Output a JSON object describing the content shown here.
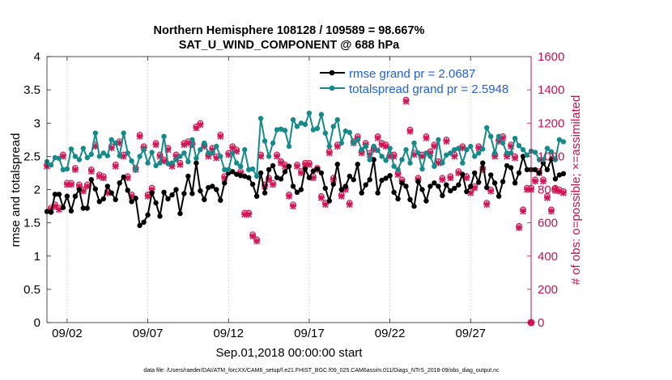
{
  "chart_data": {
    "type": "line",
    "title": "Northern Hemisphere 108128 / 109589 = 98.667%",
    "subtitle": "SAT_U_WIND_COMPONENT @ 688 hPa",
    "xlabel": "Sep.01,2018 00:00:00 start",
    "ylabel_left": "rmse and totalspread",
    "ylabel_right": "# of obs: o=possible; ×=assimilated",
    "footer": "data file: /Users/raeder/DAI/ATM_forcXX/CAM6_setup/f.e21.FHIST_BGC.f09_025.CAM6assim.011/Diags_NTrS_2018-09/obs_diag_output.nc",
    "xlim": [
      0.5,
      30.5
    ],
    "ylim_left": [
      0,
      4
    ],
    "ylim_right": [
      0,
      1600
    ],
    "x_ticks": [
      1.75,
      6.75,
      11.75,
      16.75,
      21.75,
      26.75
    ],
    "x_tick_labels": [
      "09/02",
      "09/07",
      "09/12",
      "09/17",
      "09/22",
      "09/27"
    ],
    "y_ticks_left": [
      "0",
      "0.5",
      "1",
      "1.5",
      "2",
      "2.5",
      "3",
      "3.5",
      "4"
    ],
    "y_ticks_right": [
      "0",
      "200",
      "400",
      "600",
      "800",
      "1000",
      "1200",
      "1400",
      "1600"
    ],
    "colors": {
      "rmse": "#000000",
      "spread": "#148a8a",
      "obs": "#d41454",
      "legend_text": "#1f5fe0",
      "right_axis": "#c8104e"
    },
    "legend": [
      "rmse grand pr = 2.0687",
      "totalspread grand pr = 2.5948"
    ],
    "series": [
      {
        "name": "rmse",
        "x_start": 0.5,
        "x_step": 0.25,
        "values": [
          1.67,
          1.66,
          1.93,
          1.93,
          1.73,
          1.9,
          1.68,
          1.9,
          2.0,
          1.72,
          1.72,
          2.15,
          2.01,
          1.82,
          1.86,
          2.05,
          1.95,
          1.85,
          2.1,
          2.19,
          1.99,
          1.82,
          1.87,
          1.46,
          1.51,
          1.62,
          1.95,
          1.8,
          1.6,
          1.96,
          1.86,
          1.92,
          2.0,
          1.64,
          1.94,
          2.2,
          1.94,
          2.4,
          1.98,
          1.85,
          2.03,
          2.05,
          2.0,
          1.84,
          2.1,
          2.25,
          2.27,
          2.23,
          2.21,
          2.2,
          2.18,
          2.08,
          1.9,
          2.25,
          1.95,
          2.3,
          2.36,
          2.18,
          2.16,
          2.27,
          2.35,
          2.05,
          1.96,
          2.0,
          2.31,
          2.18,
          2.28,
          2.31,
          2.25,
          2.02,
          1.83,
          2.08,
          2.38,
          2.0,
          2.05,
          2.2,
          2.15,
          2.38,
          1.95,
          2.07,
          2.15,
          2.45,
          1.95,
          2.14,
          2.17,
          2.21,
          1.96,
          1.86,
          2.1,
          2.05,
          1.85,
          1.75,
          2.12,
          2.0,
          1.83,
          2.05,
          2.1,
          2.05,
          1.91,
          2.07,
          1.98,
          2.02,
          2.07,
          2.23,
          1.97,
          2.05,
          2.25,
          2.11,
          2.4,
          2.03,
          2.22,
          2.1,
          1.9,
          2.12,
          2.36,
          2.33,
          2.1,
          2.25,
          2.5,
          2.3,
          2.3,
          2.3,
          2.25,
          2.4,
          2.3,
          2.46,
          2.16,
          2.22,
          2.24
        ]
      },
      {
        "name": "totalspread",
        "x_start": 0.5,
        "x_step": 0.25,
        "values": [
          2.42,
          2.37,
          2.48,
          2.47,
          2.3,
          2.31,
          2.61,
          2.5,
          2.45,
          2.62,
          2.48,
          2.53,
          2.85,
          2.5,
          2.55,
          2.51,
          2.75,
          2.7,
          2.51,
          2.85,
          2.55,
          2.43,
          2.3,
          2.5,
          2.6,
          2.4,
          2.56,
          2.36,
          2.4,
          2.8,
          2.39,
          2.4,
          2.45,
          2.5,
          2.55,
          2.42,
          2.75,
          2.47,
          2.6,
          2.7,
          2.55,
          2.55,
          2.65,
          2.5,
          2.3,
          2.3,
          2.55,
          2.4,
          2.35,
          2.6,
          2.3,
          2.31,
          2.2,
          3.07,
          2.73,
          2.5,
          2.7,
          2.9,
          2.91,
          2.89,
          2.65,
          3.05,
          2.95,
          3.0,
          2.98,
          3.15,
          2.9,
          2.92,
          3.13,
          2.85,
          2.65,
          2.95,
          3.05,
          2.7,
          2.88,
          2.86,
          2.7,
          2.75,
          2.6,
          2.65,
          2.45,
          2.65,
          2.59,
          2.5,
          2.44,
          2.62,
          2.35,
          2.3,
          2.45,
          2.6,
          2.4,
          2.7,
          2.55,
          2.31,
          2.55,
          2.5,
          2.35,
          2.75,
          2.4,
          2.52,
          2.55,
          2.6,
          2.62,
          2.4,
          2.6,
          2.65,
          2.5,
          2.55,
          2.61,
          2.93,
          2.8,
          2.55,
          2.8,
          2.7,
          2.55,
          2.55,
          2.77,
          2.66,
          2.6,
          2.52,
          2.58,
          2.56,
          2.45,
          2.45,
          2.62,
          2.57,
          2.45,
          2.75,
          2.72
        ]
      }
    ],
    "obs_assimilated": {
      "x_start": 0.5,
      "x_step": 0.25,
      "values": [
        940,
        680,
        700,
        680,
        1000,
        830,
        830,
        920,
        820,
        790,
        820,
        910,
        1060,
        880,
        870,
        780,
        1050,
        940,
        1080,
        1000,
        870,
        760,
        920,
        1120,
        1050,
        760,
        800,
        1070,
        1000,
        970,
        1040,
        940,
        1000,
        950,
        1070,
        1080,
        1070,
        1170,
        1190,
        1060,
        1000,
        1040,
        990,
        1120,
        870,
        1010,
        1050,
        1030,
        900,
        650,
        650,
        520,
        490,
        1000,
        820,
        860,
        830,
        1000,
        960,
        940,
        760,
        700,
        940,
        900,
        950,
        950,
        870,
        920,
        750,
        710,
        1020,
        860,
        1060,
        760,
        800,
        710,
        1080,
        1110,
        1020,
        1070,
        1010,
        1040,
        1110,
        1070,
        1060,
        1000,
        1000,
        890,
        850,
        1330,
        1150,
        1010,
        860,
        1000,
        1110,
        1020,
        1060,
        960,
        860,
        1090,
        870,
        1000,
        900,
        1050,
        870,
        780,
        810,
        1050,
        920,
        710,
        790,
        1000,
        1090,
        1110,
        1000,
        1060,
        990,
        570,
        670,
        800,
        800,
        850,
        900,
        850,
        750,
        670,
        800,
        790,
        780
      ]
    },
    "obs_possible": {
      "x_start": 0.5,
      "x_step": 0.25,
      "values": [
        950,
        690,
        710,
        690,
        1010,
        840,
        840,
        930,
        830,
        800,
        830,
        920,
        1070,
        890,
        880,
        790,
        1060,
        950,
        1090,
        1010,
        880,
        770,
        930,
        1130,
        1060,
        770,
        810,
        1080,
        1010,
        980,
        1050,
        950,
        1010,
        960,
        1080,
        1090,
        1080,
        1180,
        1200,
        1070,
        1010,
        1050,
        1000,
        1130,
        880,
        1020,
        1060,
        1040,
        910,
        660,
        660,
        530,
        500,
        1010,
        830,
        870,
        840,
        1010,
        970,
        950,
        770,
        710,
        950,
        910,
        960,
        960,
        880,
        930,
        760,
        720,
        1030,
        870,
        1070,
        770,
        810,
        720,
        1090,
        1120,
        1030,
        1080,
        1020,
        1050,
        1120,
        1080,
        1070,
        1010,
        1010,
        900,
        860,
        1340,
        1160,
        1020,
        870,
        1010,
        1120,
        1030,
        1070,
        970,
        870,
        1100,
        880,
        1010,
        910,
        1060,
        880,
        790,
        820,
        1060,
        930,
        720,
        800,
        1010,
        1100,
        1120,
        1010,
        1070,
        1000,
        580,
        680,
        810,
        810,
        860,
        910,
        860,
        760,
        680,
        810,
        800,
        790
      ]
    },
    "obs_end_marker": {
      "x": 30.5,
      "value": 0
    }
  }
}
